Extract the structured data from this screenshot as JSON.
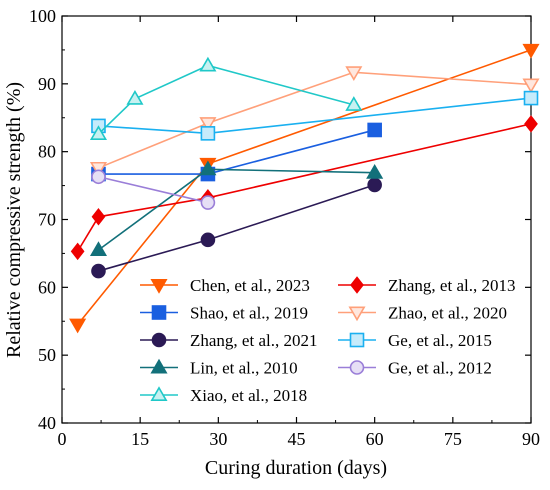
{
  "chart_data": {
    "type": "line",
    "title": "",
    "xlabel": "Curing duration (days)",
    "ylabel": "Relative compressive strength (%)",
    "xlim": [
      0,
      90
    ],
    "ylim": [
      40,
      100
    ],
    "xticks": [
      0,
      15,
      30,
      45,
      60,
      75,
      90
    ],
    "yticks": [
      40,
      50,
      60,
      70,
      80,
      90,
      100
    ],
    "grid": false,
    "legend_position": "bottom-right",
    "legend_columns": 2,
    "series": [
      {
        "name": "Chen, et al., 2023",
        "color": "#ff5a00",
        "marker": "triangle-down",
        "filled": true,
        "x": [
          3,
          28,
          90
        ],
        "y": [
          54.5,
          78.2,
          95.0
        ]
      },
      {
        "name": "Zhang, et al., 2013",
        "color": "#ee0000",
        "marker": "diamond",
        "filled": true,
        "x": [
          3,
          7,
          28,
          90
        ],
        "y": [
          65.3,
          70.4,
          73.2,
          84.1
        ]
      },
      {
        "name": "Shao, et al., 2019",
        "color": "#1a5fe0",
        "marker": "square",
        "filled": true,
        "x": [
          7,
          28,
          60
        ],
        "y": [
          76.7,
          76.7,
          83.2
        ]
      },
      {
        "name": "Zhao, et al., 2020",
        "color": "#ffa07a",
        "marker": "triangle-down",
        "filled": false,
        "x": [
          7,
          28,
          56,
          90
        ],
        "y": [
          77.6,
          84.2,
          91.7,
          89.9
        ]
      },
      {
        "name": "Zhang, et al., 2021",
        "color": "#2b1a55",
        "marker": "circle",
        "filled": true,
        "x": [
          7,
          28,
          60
        ],
        "y": [
          62.4,
          67.0,
          75.1
        ]
      },
      {
        "name": "Ge, et al., 2015",
        "color": "#1ab0f0",
        "marker": "square",
        "filled": false,
        "x": [
          7,
          28,
          90
        ],
        "y": [
          83.8,
          82.7,
          87.9
        ]
      },
      {
        "name": "Lin, et al., 2010",
        "color": "#12707a",
        "marker": "triangle-up",
        "filled": true,
        "x": [
          7,
          28,
          60
        ],
        "y": [
          65.5,
          77.4,
          76.9
        ]
      },
      {
        "name": "Ge, et al., 2012",
        "color": "#9a7ed8",
        "marker": "circle",
        "filled": false,
        "x": [
          7,
          28
        ],
        "y": [
          76.3,
          72.5
        ]
      },
      {
        "name": "Xiao, et al., 2018",
        "color": "#20c8c8",
        "marker": "triangle-up",
        "filled": false,
        "x": [
          7,
          14,
          28,
          56
        ],
        "y": [
          82.6,
          87.8,
          92.7,
          86.9
        ]
      }
    ]
  }
}
